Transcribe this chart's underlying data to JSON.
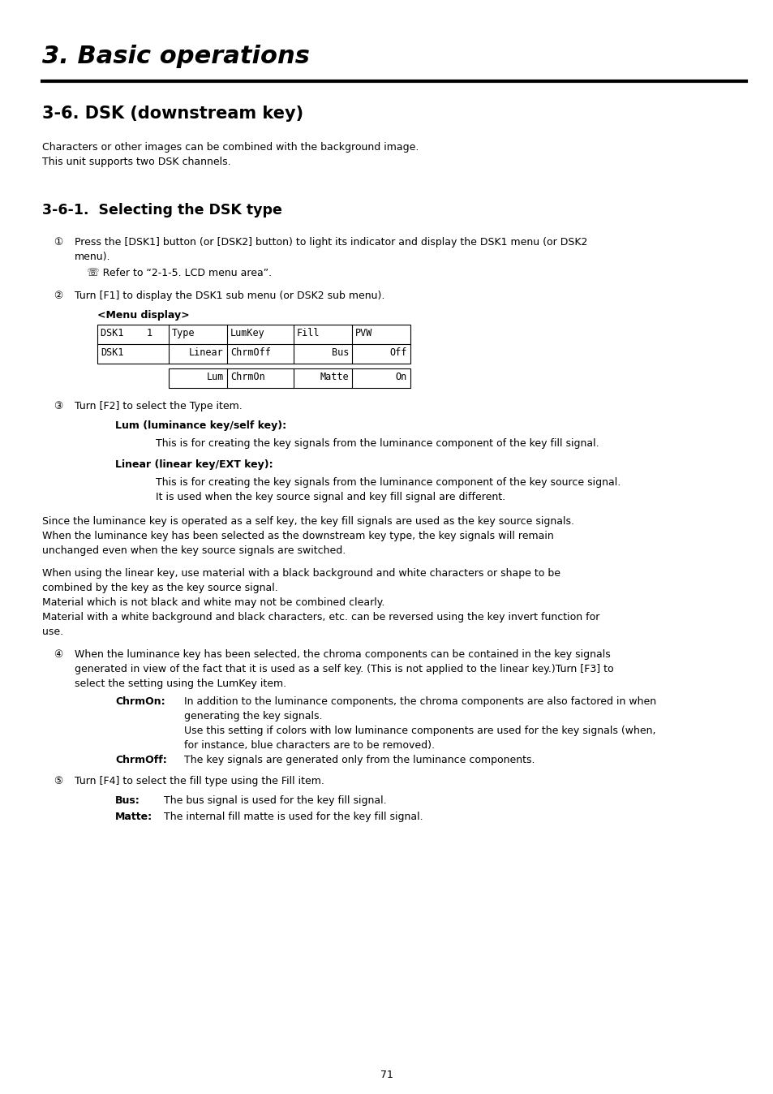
{
  "title": "3. Basic operations",
  "section": "3-6. DSK (downstream key)",
  "subsection": "3-6-1.  Selecting the DSK type",
  "bg_color": "#ffffff",
  "text_color": "#000000",
  "page_number": "71"
}
